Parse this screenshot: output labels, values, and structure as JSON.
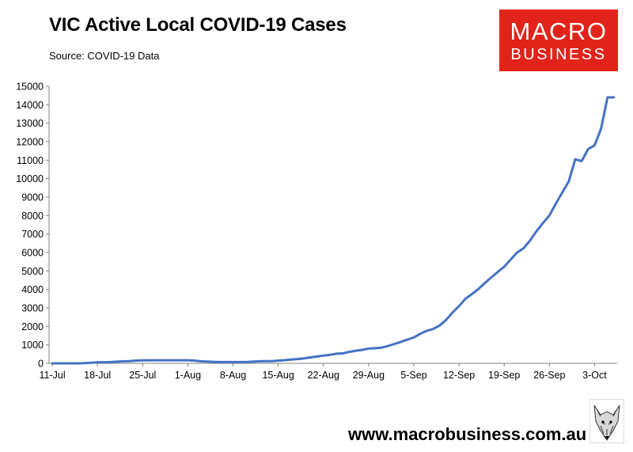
{
  "header": {
    "title": "VIC Active Local COVID-19 Cases",
    "subtitle": "Source: COVID-19 Data"
  },
  "logo": {
    "line1": "MACRO",
    "line2": "BUSINESS",
    "color": "#e2231a"
  },
  "footer": {
    "url": "www.macrobusiness.com.au"
  },
  "icons": {
    "mascot": "fox-head-icon"
  },
  "chart_data": {
    "type": "line",
    "title": "VIC Active Local COVID-19 Cases",
    "xlabel": "",
    "ylabel": "",
    "ylim": [
      0,
      15000
    ],
    "yticks": [
      0,
      1000,
      2000,
      3000,
      4000,
      5000,
      6000,
      7000,
      8000,
      9000,
      10000,
      11000,
      12000,
      13000,
      14000,
      15000
    ],
    "xticks": [
      "11-Jul",
      "18-Jul",
      "25-Jul",
      "1-Aug",
      "8-Aug",
      "15-Aug",
      "22-Aug",
      "29-Aug",
      "5-Sep",
      "12-Sep",
      "19-Sep",
      "26-Sep",
      "3-Oct"
    ],
    "grid": false,
    "line_color": "#4472c4",
    "series": [
      {
        "x": [
          "11-Jul",
          "12-Jul",
          "13-Jul",
          "14-Jul",
          "15-Jul",
          "16-Jul",
          "17-Jul",
          "18-Jul",
          "19-Jul",
          "20-Jul",
          "21-Jul",
          "22-Jul",
          "23-Jul",
          "24-Jul",
          "25-Jul",
          "26-Jul",
          "27-Jul",
          "28-Jul",
          "29-Jul",
          "30-Jul",
          "31-Jul",
          "1-Aug",
          "2-Aug",
          "3-Aug",
          "4-Aug",
          "5-Aug",
          "6-Aug",
          "7-Aug",
          "8-Aug",
          "9-Aug",
          "10-Aug",
          "11-Aug",
          "12-Aug",
          "13-Aug",
          "14-Aug",
          "15-Aug",
          "16-Aug",
          "17-Aug",
          "18-Aug",
          "19-Aug",
          "20-Aug",
          "21-Aug",
          "22-Aug",
          "23-Aug",
          "24-Aug",
          "25-Aug",
          "26-Aug",
          "27-Aug",
          "28-Aug",
          "29-Aug",
          "30-Aug",
          "31-Aug",
          "1-Sep",
          "2-Sep",
          "3-Sep",
          "4-Sep",
          "5-Sep",
          "6-Sep",
          "7-Sep",
          "8-Sep",
          "9-Sep",
          "10-Sep",
          "11-Sep",
          "12-Sep",
          "13-Sep",
          "14-Sep",
          "15-Sep",
          "16-Sep",
          "17-Sep",
          "18-Sep",
          "19-Sep",
          "20-Sep",
          "21-Sep",
          "22-Sep",
          "23-Sep",
          "24-Sep",
          "25-Sep",
          "26-Sep",
          "27-Sep",
          "28-Sep",
          "29-Sep",
          "30-Sep",
          "1-Oct",
          "2-Oct",
          "3-Oct",
          "4-Oct",
          "5-Oct",
          "6-Oct"
        ],
        "values": [
          0,
          0,
          0,
          0,
          0,
          10,
          30,
          55,
          60,
          70,
          90,
          110,
          120,
          150,
          160,
          165,
          165,
          165,
          165,
          165,
          165,
          165,
          150,
          110,
          100,
          80,
          70,
          70,
          70,
          70,
          70,
          90,
          110,
          120,
          120,
          150,
          170,
          200,
          230,
          270,
          320,
          370,
          420,
          460,
          520,
          540,
          620,
          680,
          730,
          800,
          820,
          850,
          940,
          1050,
          1160,
          1280,
          1400,
          1600,
          1760,
          1860,
          2050,
          2350,
          2750,
          3100,
          3500,
          3750,
          4020,
          4350,
          4650,
          4950,
          5230,
          5620,
          6000,
          6230,
          6650,
          7150,
          7600,
          8000,
          8650,
          9250,
          9850,
          11050,
          10950,
          11600,
          11800,
          12700,
          14400,
          14400
        ]
      }
    ]
  }
}
